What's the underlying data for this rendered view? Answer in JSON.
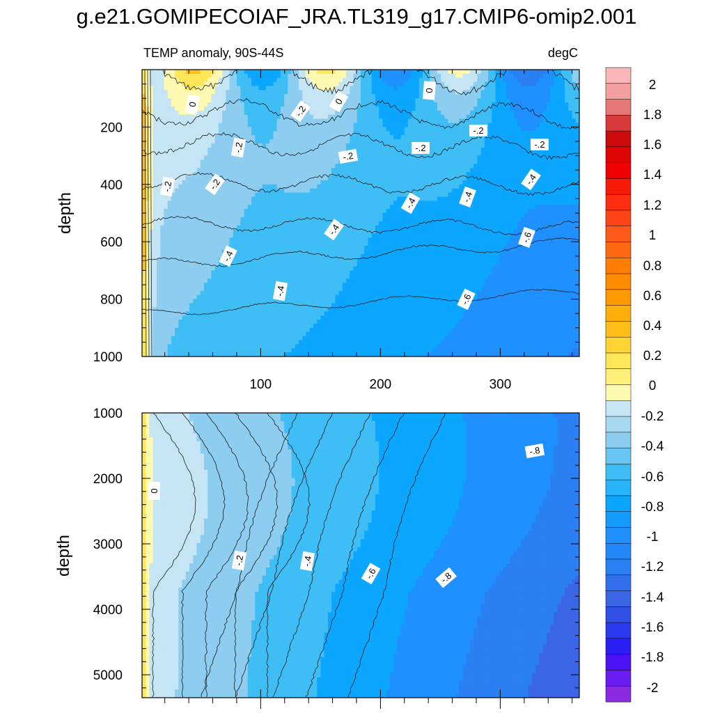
{
  "title": "g.e21.GOMIPECOIAF_JRA.TL319_g17.CMIP6-omip2.001",
  "colors": {
    "levels": [
      {
        "value": -2.0,
        "color": "#8a2be2"
      },
      {
        "value": -1.8,
        "color": "#5a10f0"
      },
      {
        "value": -1.6,
        "color": "#2a1ef5"
      },
      {
        "value": -1.4,
        "color": "#2f3fe0"
      },
      {
        "value": -1.2,
        "color": "#3a66e6"
      },
      {
        "value": -1.0,
        "color": "#2a7ff2"
      },
      {
        "value": -0.8,
        "color": "#1e90ff"
      },
      {
        "value": -0.6,
        "color": "#0aa6ff"
      },
      {
        "value": -0.4,
        "color": "#3fbdf5"
      },
      {
        "value": -0.2,
        "color": "#8ccdf0"
      },
      {
        "value": 0.0,
        "color": "#c5e5f5"
      },
      {
        "value": 0.2,
        "color": "#fdf9b0"
      },
      {
        "value": 0.4,
        "color": "#ffe658"
      },
      {
        "value": 0.6,
        "color": "#ffbf1a"
      },
      {
        "value": 0.8,
        "color": "#ff9a00"
      },
      {
        "value": 1.0,
        "color": "#ff7d00"
      },
      {
        "value": 1.2,
        "color": "#ff5a1a"
      },
      {
        "value": 1.4,
        "color": "#ff2e10"
      },
      {
        "value": 1.6,
        "color": "#f00000"
      },
      {
        "value": 1.8,
        "color": "#cc0a0a"
      },
      {
        "value": 2.0,
        "color": "#e87878"
      }
    ],
    "colorbar": [
      "#8a2be2",
      "#6a1df0",
      "#4a12f5",
      "#2a1ef5",
      "#2a38ee",
      "#2f4fe5",
      "#3a66e6",
      "#3270ee",
      "#2a7ff2",
      "#2288f8",
      "#1e90ff",
      "#169bff",
      "#0aa6ff",
      "#28b4fa",
      "#3fbdf5",
      "#6ac6f2",
      "#8ccdf0",
      "#a8d9f3",
      "#c5e5f5",
      "#fdf9b0",
      "#fff07a",
      "#ffe658",
      "#ffd535",
      "#ffbf1a",
      "#ffae0a",
      "#ff9a00",
      "#ff8c00",
      "#ff7d00",
      "#ff6a10",
      "#ff5a1a",
      "#ff4515",
      "#ff2e10",
      "#f81a08",
      "#f00000",
      "#e00505",
      "#cc0a0a",
      "#d63a3a",
      "#e87878",
      "#f4a0a0",
      "#fcb8b8"
    ]
  },
  "chart_data": [
    {
      "type": "heatmap",
      "subtitle_left": "TEMP anomaly, 90S-44S",
      "subtitle_right": "degC",
      "xlabel": "",
      "ylabel": "depth",
      "xlim": [
        1,
        366
      ],
      "ylim": [
        1000,
        0
      ],
      "x_ticks": [
        "100",
        "200",
        "300"
      ],
      "y_ticks": [
        "200",
        "400",
        "600",
        "800",
        "1000"
      ],
      "contour_labels": [
        "0",
        "-.2",
        "0",
        "0",
        "-.2",
        "-.2",
        "-.2",
        "-.2",
        "-.2",
        "-.2",
        "-.2",
        "-.4",
        "-.4",
        "-.4",
        "-.4",
        "-.4",
        "-.4",
        "-.6",
        "-.6"
      ]
    },
    {
      "type": "heatmap",
      "xlabel": "",
      "ylabel": "depth",
      "xlim": [
        1,
        366
      ],
      "ylim": [
        5350,
        1000
      ],
      "x_ticks": [],
      "y_ticks": [
        "1000",
        "2000",
        "3000",
        "4000",
        "5000"
      ],
      "contour_labels": [
        "0",
        "-.2",
        "-.4",
        "-.6",
        "-.8",
        "-.8"
      ]
    }
  ],
  "colorbar_labels": [
    "2",
    "1.8",
    "1.6",
    "1.4",
    "1.2",
    "1",
    "0.8",
    "0.6",
    "0.4",
    "0.2",
    "0",
    "-0.2",
    "-0.4",
    "-0.6",
    "-0.8",
    "-1",
    "-1.2",
    "-1.4",
    "-1.6",
    "-1.8",
    "-2"
  ]
}
